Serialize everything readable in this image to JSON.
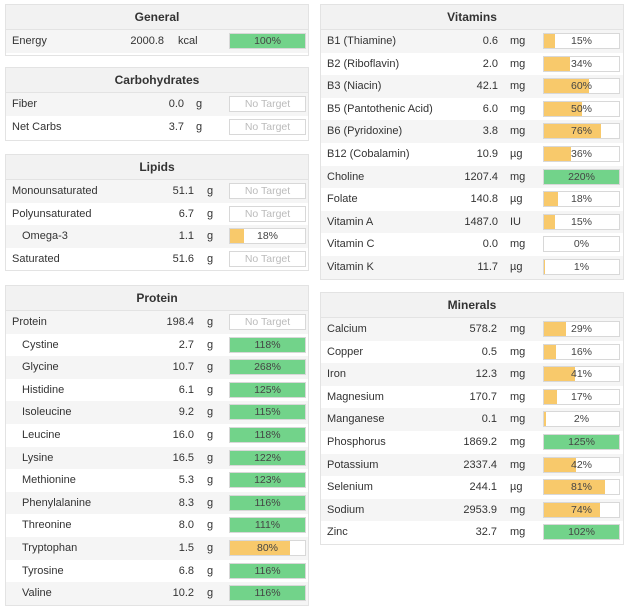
{
  "panels": [
    {
      "id": "general",
      "title": "General",
      "rows": [
        {
          "name": "Energy",
          "value": "2000.8",
          "unit": "kcal",
          "pct": "100%",
          "fill": 1.0,
          "color": "#72d38a"
        }
      ]
    },
    {
      "id": "carbohydrates",
      "title": "Carbohydrates",
      "rows": [
        {
          "name": "Fiber",
          "value": "0.0",
          "unit": "g",
          "pct": "No Target",
          "fill": 0,
          "color": ""
        },
        {
          "name": "Net Carbs",
          "value": "3.7",
          "unit": "g",
          "pct": "No Target",
          "fill": 0,
          "color": ""
        }
      ]
    },
    {
      "id": "lipids",
      "title": "Lipids",
      "rows": [
        {
          "name": "Monounsaturated",
          "value": "51.1",
          "unit": "g",
          "pct": "No Target",
          "fill": 0,
          "color": ""
        },
        {
          "name": "Polyunsaturated",
          "value": "6.7",
          "unit": "g",
          "pct": "No Target",
          "fill": 0,
          "color": ""
        },
        {
          "name": "Omega-3",
          "indent": true,
          "value": "1.1",
          "unit": "g",
          "pct": "18%",
          "fill": 0.18,
          "color": "#f8c96b"
        },
        {
          "name": "Saturated",
          "value": "51.6",
          "unit": "g",
          "pct": "No Target",
          "fill": 0,
          "color": ""
        }
      ]
    },
    {
      "id": "protein",
      "title": "Protein",
      "rows": [
        {
          "name": "Protein",
          "value": "198.4",
          "unit": "g",
          "pct": "No Target",
          "fill": 0,
          "color": ""
        },
        {
          "name": "Cystine",
          "indent": true,
          "value": "2.7",
          "unit": "g",
          "pct": "118%",
          "fill": 1.0,
          "color": "#72d38a"
        },
        {
          "name": "Glycine",
          "indent": true,
          "value": "10.7",
          "unit": "g",
          "pct": "268%",
          "fill": 1.0,
          "color": "#72d38a"
        },
        {
          "name": "Histidine",
          "indent": true,
          "value": "6.1",
          "unit": "g",
          "pct": "125%",
          "fill": 1.0,
          "color": "#72d38a"
        },
        {
          "name": "Isoleucine",
          "indent": true,
          "value": "9.2",
          "unit": "g",
          "pct": "115%",
          "fill": 1.0,
          "color": "#72d38a"
        },
        {
          "name": "Leucine",
          "indent": true,
          "value": "16.0",
          "unit": "g",
          "pct": "118%",
          "fill": 1.0,
          "color": "#72d38a"
        },
        {
          "name": "Lysine",
          "indent": true,
          "value": "16.5",
          "unit": "g",
          "pct": "122%",
          "fill": 1.0,
          "color": "#72d38a"
        },
        {
          "name": "Methionine",
          "indent": true,
          "value": "5.3",
          "unit": "g",
          "pct": "123%",
          "fill": 1.0,
          "color": "#72d38a"
        },
        {
          "name": "Phenylalanine",
          "indent": true,
          "value": "8.3",
          "unit": "g",
          "pct": "116%",
          "fill": 1.0,
          "color": "#72d38a"
        },
        {
          "name": "Threonine",
          "indent": true,
          "value": "8.0",
          "unit": "g",
          "pct": "111%",
          "fill": 1.0,
          "color": "#72d38a"
        },
        {
          "name": "Tryptophan",
          "indent": true,
          "value": "1.5",
          "unit": "g",
          "pct": "80%",
          "fill": 0.8,
          "color": "#f8c96b"
        },
        {
          "name": "Tyrosine",
          "indent": true,
          "value": "6.8",
          "unit": "g",
          "pct": "116%",
          "fill": 1.0,
          "color": "#72d38a"
        },
        {
          "name": "Valine",
          "indent": true,
          "value": "10.2",
          "unit": "g",
          "pct": "116%",
          "fill": 1.0,
          "color": "#72d38a"
        }
      ]
    },
    {
      "id": "vitamins",
      "title": "Vitamins",
      "rows": [
        {
          "name": "B1 (Thiamine)",
          "value": "0.6",
          "unit": "mg",
          "pct": "15%",
          "fill": 0.15,
          "color": "#f8c96b"
        },
        {
          "name": "B2 (Riboflavin)",
          "value": "2.0",
          "unit": "mg",
          "pct": "34%",
          "fill": 0.34,
          "color": "#f8c96b"
        },
        {
          "name": "B3 (Niacin)",
          "value": "42.1",
          "unit": "mg",
          "pct": "60%",
          "fill": 0.6,
          "color": "#f8c96b"
        },
        {
          "name": "B5 (Pantothenic Acid)",
          "value": "6.0",
          "unit": "mg",
          "pct": "50%",
          "fill": 0.5,
          "color": "#f8c96b"
        },
        {
          "name": "B6 (Pyridoxine)",
          "value": "3.8",
          "unit": "mg",
          "pct": "76%",
          "fill": 0.76,
          "color": "#f8c96b"
        },
        {
          "name": "B12 (Cobalamin)",
          "value": "10.9",
          "unit": "µg",
          "pct": "36%",
          "fill": 0.36,
          "color": "#f8c96b"
        },
        {
          "name": "Choline",
          "value": "1207.4",
          "unit": "mg",
          "pct": "220%",
          "fill": 1.0,
          "color": "#72d38a"
        },
        {
          "name": "Folate",
          "value": "140.8",
          "unit": "µg",
          "pct": "18%",
          "fill": 0.18,
          "color": "#f8c96b"
        },
        {
          "name": "Vitamin A",
          "value": "1487.0",
          "unit": "IU",
          "pct": "15%",
          "fill": 0.15,
          "color": "#f8c96b"
        },
        {
          "name": "Vitamin C",
          "value": "0.0",
          "unit": "mg",
          "pct": "0%",
          "fill": 0,
          "color": "#f8c96b"
        },
        {
          "name": "Vitamin K",
          "value": "11.7",
          "unit": "µg",
          "pct": "1%",
          "fill": 0.01,
          "color": "#f8c96b"
        }
      ]
    },
    {
      "id": "minerals",
      "title": "Minerals",
      "rows": [
        {
          "name": "Calcium",
          "value": "578.2",
          "unit": "mg",
          "pct": "29%",
          "fill": 0.29,
          "color": "#f8c96b"
        },
        {
          "name": "Copper",
          "value": "0.5",
          "unit": "mg",
          "pct": "16%",
          "fill": 0.16,
          "color": "#f8c96b"
        },
        {
          "name": "Iron",
          "value": "12.3",
          "unit": "mg",
          "pct": "41%",
          "fill": 0.41,
          "color": "#f8c96b"
        },
        {
          "name": "Magnesium",
          "value": "170.7",
          "unit": "mg",
          "pct": "17%",
          "fill": 0.17,
          "color": "#f8c96b"
        },
        {
          "name": "Manganese",
          "value": "0.1",
          "unit": "mg",
          "pct": "2%",
          "fill": 0.02,
          "color": "#f8c96b"
        },
        {
          "name": "Phosphorus",
          "value": "1869.2",
          "unit": "mg",
          "pct": "125%",
          "fill": 1.0,
          "color": "#72d38a"
        },
        {
          "name": "Potassium",
          "value": "2337.4",
          "unit": "mg",
          "pct": "42%",
          "fill": 0.42,
          "color": "#f8c96b"
        },
        {
          "name": "Selenium",
          "value": "244.1",
          "unit": "µg",
          "pct": "81%",
          "fill": 0.81,
          "color": "#f8c96b"
        },
        {
          "name": "Sodium",
          "value": "2953.9",
          "unit": "mg",
          "pct": "74%",
          "fill": 0.74,
          "color": "#f8c96b"
        },
        {
          "name": "Zinc",
          "value": "32.7",
          "unit": "mg",
          "pct": "102%",
          "fill": 1.0,
          "color": "#72d38a"
        }
      ]
    }
  ]
}
